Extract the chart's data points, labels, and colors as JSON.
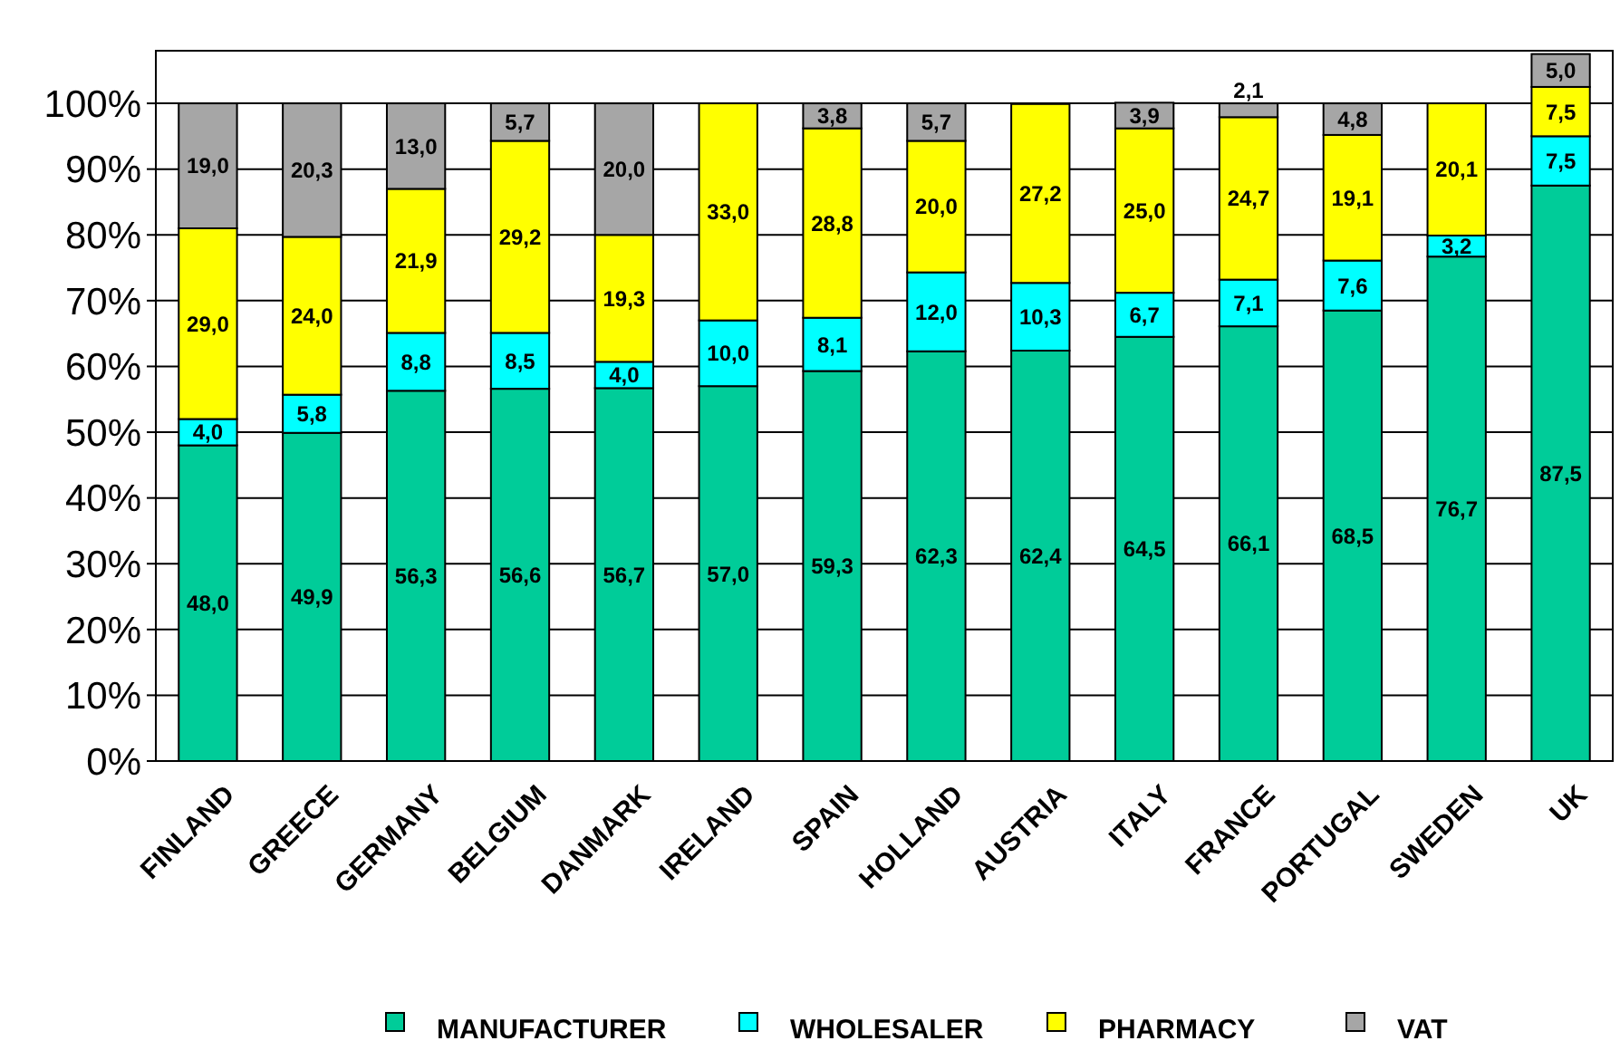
{
  "chart_data": {
    "type": "bar",
    "stacked": true,
    "categories": [
      "FINLAND",
      "GREECE",
      "GERMANY",
      "BELGIUM",
      "DANMARK",
      "IRELAND",
      "SPAIN",
      "HOLLAND",
      "AUSTRIA",
      "ITALY",
      "FRANCE",
      "PORTUGAL",
      "SWEDEN",
      "UK"
    ],
    "series": [
      {
        "name": "MANUFACTURER",
        "color": "#00cc99",
        "values": [
          48.0,
          49.9,
          56.3,
          56.6,
          56.7,
          57.0,
          59.3,
          62.3,
          62.4,
          64.5,
          66.1,
          68.5,
          76.7,
          87.5
        ],
        "value_labels": [
          "48,0",
          "49,9",
          "56,3",
          "56,6",
          "56,7",
          "57,0",
          "59,3",
          "62,3",
          "62,4",
          "64,5",
          "66,1",
          "68,5",
          "76,7",
          "87,5"
        ]
      },
      {
        "name": "WHOLESALER",
        "color": "#00ffff",
        "values": [
          4.0,
          5.8,
          8.8,
          8.5,
          4.0,
          10.0,
          8.1,
          12.0,
          10.3,
          6.7,
          7.1,
          7.6,
          3.2,
          7.5
        ],
        "value_labels": [
          "4,0",
          "5,8",
          "8,8",
          "8,5",
          "4,0",
          "10,0",
          "8,1",
          "12,0",
          "10,3",
          "6,7",
          "7,1",
          "7,6",
          "3,2",
          "7,5"
        ]
      },
      {
        "name": "PHARMACY",
        "color": "#ffff00",
        "values": [
          29.0,
          24.0,
          21.9,
          29.2,
          19.3,
          33.0,
          28.8,
          20.0,
          27.2,
          25.0,
          24.7,
          19.1,
          20.1,
          7.5
        ],
        "value_labels": [
          "29,0",
          "24,0",
          "21,9",
          "29,2",
          "19,3",
          "33,0",
          "28,8",
          "20,0",
          "27,2",
          "25,0",
          "24,7",
          "19,1",
          "20,1",
          "7,5"
        ]
      },
      {
        "name": "VAT",
        "color": "#a6a6a6",
        "values": [
          19.0,
          20.3,
          13.0,
          5.7,
          20.0,
          0,
          3.8,
          5.7,
          0,
          3.9,
          2.1,
          4.8,
          0,
          5.0
        ],
        "value_labels": [
          "19,0",
          "20,3",
          "13,0",
          "5,7",
          "20,0",
          null,
          "3,8",
          "5,7",
          null,
          "3,9",
          "2,1",
          "4,8",
          null,
          "5,0"
        ]
      }
    ],
    "ylim": [
      0,
      108
    ],
    "yticks": [
      {
        "value": 0,
        "label": "0%"
      },
      {
        "value": 10,
        "label": "10%"
      },
      {
        "value": 20,
        "label": "20%"
      },
      {
        "value": 30,
        "label": "30%"
      },
      {
        "value": 40,
        "label": "40%"
      },
      {
        "value": 50,
        "label": "50%"
      },
      {
        "value": 60,
        "label": "60%"
      },
      {
        "value": 70,
        "label": "70%"
      },
      {
        "value": 80,
        "label": "80%"
      },
      {
        "value": 90,
        "label": "90%"
      },
      {
        "value": 100,
        "label": "100%"
      }
    ],
    "grid": "y",
    "legend": "bottom"
  }
}
